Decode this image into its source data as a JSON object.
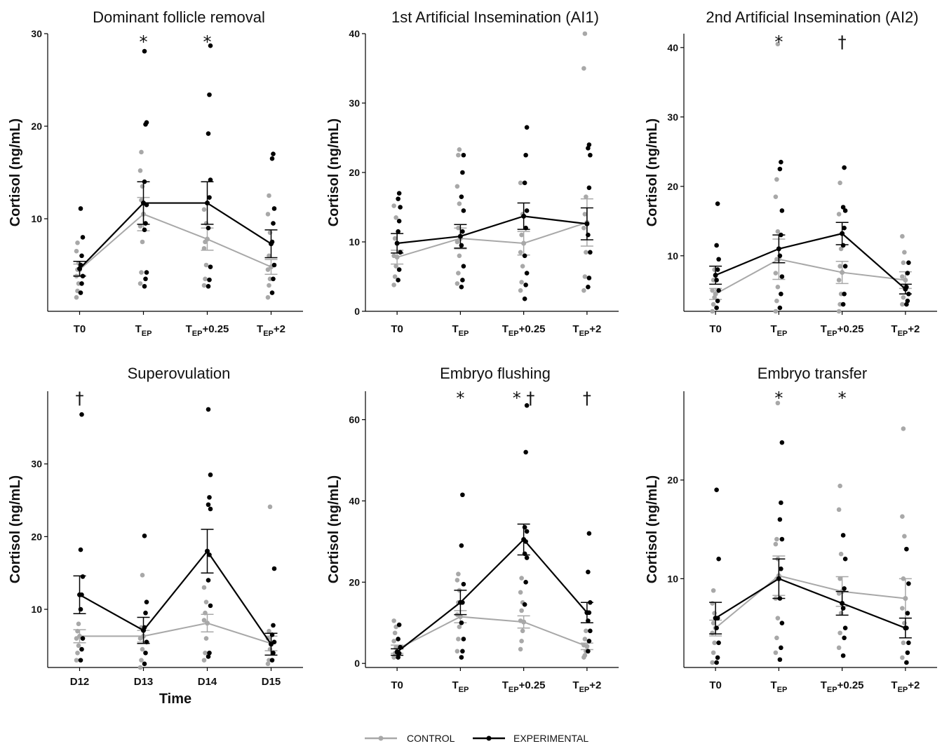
{
  "legend": {
    "control_label": "CONTROL",
    "experimental_label": "EXPERIMENTAL",
    "colors": {
      "control": "#a8a8a8",
      "experimental": "#000000"
    }
  },
  "chart_data": [
    {
      "type": "line",
      "title": "Dominant follicle removal",
      "ylabel": "Cortisol (ng/mL)",
      "xlabel": "",
      "ylim": [
        0,
        30
      ],
      "yticks": [
        10,
        20,
        30
      ],
      "categories": [
        {
          "main": "T0",
          "sub": "",
          "tail": ""
        },
        {
          "main": "T",
          "sub": "EP",
          "tail": ""
        },
        {
          "main": "T",
          "sub": "EP",
          "tail": "+0.25"
        },
        {
          "main": "T",
          "sub": "EP",
          "tail": "+2"
        }
      ],
      "series": [
        {
          "name": "CONTROL",
          "mean": [
            4.5,
            10.5,
            7.8,
            4.8
          ],
          "sem": [
            0.6,
            1.8,
            1.2,
            0.8
          ],
          "points": [
            [
              1.5,
              2.2,
              3.0,
              3.8,
              4.5,
              5.2,
              6.5,
              7.4
            ],
            [
              3.0,
              4.2,
              7.5,
              9.2,
              12.0,
              13.5,
              15.2,
              17.2
            ],
            [
              2.8,
              3.5,
              5.0,
              6.8,
              7.5,
              9.5,
              11.0
            ],
            [
              1.5,
              2.8,
              3.5,
              4.5,
              6.0,
              8.5,
              10.5,
              12.5
            ]
          ]
        },
        {
          "name": "EXPERIMENTAL",
          "mean": [
            4.6,
            11.7,
            11.7,
            7.3
          ],
          "sem": [
            0.8,
            2.3,
            2.3,
            1.5
          ],
          "points": [
            [
              2.0,
              3.0,
              3.8,
              5.0,
              6.0,
              8.0,
              11.1
            ],
            [
              2.7,
              3.5,
              4.2,
              8.8,
              9.5,
              11.5,
              14.0,
              20.2,
              20.4,
              28.1
            ],
            [
              2.7,
              3.4,
              4.8,
              9.0,
              12.3,
              14.2,
              19.2,
              23.4,
              28.7
            ],
            [
              2.0,
              3.5,
              5.0,
              7.5,
              9.5,
              11.1,
              16.5,
              17.0
            ]
          ]
        }
      ],
      "annotations": [
        {
          "category": 1,
          "text": "*"
        },
        {
          "category": 2,
          "text": "*"
        }
      ]
    },
    {
      "type": "line",
      "title": "1st Artificial Insemination (AI1)",
      "ylabel": "Cortisol (ng/mL)",
      "xlabel": "",
      "ylim": [
        0,
        40
      ],
      "yticks": [
        0,
        10,
        20,
        30,
        40
      ],
      "categories": [
        {
          "main": "T0",
          "sub": "",
          "tail": ""
        },
        {
          "main": "T",
          "sub": "EP",
          "tail": ""
        },
        {
          "main": "T",
          "sub": "EP",
          "tail": "+0.25"
        },
        {
          "main": "T",
          "sub": "EP",
          "tail": "+2"
        }
      ],
      "series": [
        {
          "name": "CONTROL",
          "mean": [
            7.8,
            10.5,
            9.8,
            12.8
          ],
          "sem": [
            1.0,
            1.5,
            1.7,
            3.4
          ],
          "points": [
            [
              3.8,
              5.0,
              6.5,
              8.0,
              10.5,
              13.5,
              15.2
            ],
            [
              4.0,
              5.5,
              8.0,
              10.0,
              12.0,
              15.5,
              18.0,
              22.5,
              23.3
            ],
            [
              3.0,
              4.2,
              6.5,
              8.5,
              11.0,
              14.0,
              18.5
            ],
            [
              3.0,
              5.0,
              8.5,
              12.0,
              14.0,
              16.5,
              35.0,
              40.0
            ]
          ]
        },
        {
          "name": "EXPERIMENTAL",
          "mean": [
            9.8,
            10.8,
            13.7,
            12.6
          ],
          "sem": [
            1.4,
            1.7,
            1.9,
            2.3
          ],
          "points": [
            [
              4.5,
              6.0,
              8.5,
              11.5,
              13.0,
              15.0,
              16.2,
              17.0
            ],
            [
              3.5,
              4.5,
              6.5,
              9.5,
              11.5,
              14.5,
              16.5,
              20.0,
              22.5
            ],
            [
              1.8,
              3.8,
              5.5,
              8.0,
              12.0,
              14.5,
              18.5,
              22.5,
              26.5
            ],
            [
              3.5,
              4.8,
              8.5,
              11.0,
              17.8,
              22.5,
              23.5,
              24.0
            ]
          ]
        }
      ],
      "annotations": []
    },
    {
      "type": "line",
      "title": "2nd Artificial Insemination (AI2)",
      "ylabel": "Cortisol (ng/mL)",
      "xlabel": "",
      "ylim": [
        2,
        42
      ],
      "yticks": [
        10,
        20,
        30,
        40
      ],
      "categories": [
        {
          "main": "T0",
          "sub": "",
          "tail": ""
        },
        {
          "main": "T",
          "sub": "EP",
          "tail": ""
        },
        {
          "main": "T",
          "sub": "EP",
          "tail": "+0.25"
        },
        {
          "main": "T",
          "sub": "EP",
          "tail": "+2"
        }
      ],
      "series": [
        {
          "name": "CONTROL",
          "mean": [
            4.5,
            9.5,
            7.6,
            6.5
          ],
          "sem": [
            0.8,
            2.9,
            1.6,
            1.2
          ],
          "points": [
            [
              2.0,
              3.0,
              4.0,
              5.0,
              6.5,
              8.0
            ],
            [
              2.0,
              3.5,
              5.5,
              7.5,
              9.5,
              13.5,
              18.5,
              21.0,
              40.5
            ],
            [
              2.0,
              3.0,
              4.5,
              6.5,
              8.5,
              11.0,
              16.0,
              20.5
            ],
            [
              3.0,
              4.0,
              5.5,
              7.0,
              9.0,
              10.5,
              12.8
            ]
          ]
        },
        {
          "name": "EXPERIMENTAL",
          "mean": [
            7.2,
            11.0,
            13.2,
            5.2
          ],
          "sem": [
            1.3,
            2.0,
            1.6,
            0.7
          ],
          "points": [
            [
              2.5,
              3.5,
              5.0,
              6.5,
              8.0,
              9.5,
              11.5,
              17.5
            ],
            [
              2.5,
              4.5,
              7.0,
              10.0,
              13.0,
              16.5,
              22.5,
              23.5
            ],
            [
              3.0,
              4.5,
              8.5,
              11.5,
              14.0,
              16.5,
              17.0,
              22.7
            ],
            [
              3.0,
              3.5,
              4.5,
              5.5,
              7.5,
              9.0
            ]
          ]
        }
      ],
      "annotations": [
        {
          "category": 1,
          "text": "*"
        },
        {
          "category": 2,
          "text": "†"
        }
      ]
    },
    {
      "type": "line",
      "title": "Superovulation",
      "ylabel": "Cortisol (ng/mL)",
      "xlabel": "Time",
      "ylim": [
        2,
        40
      ],
      "yticks": [
        10,
        20,
        30
      ],
      "categories": [
        {
          "main": "D12",
          "sub": "",
          "tail": ""
        },
        {
          "main": "D13",
          "sub": "",
          "tail": ""
        },
        {
          "main": "D14",
          "sub": "",
          "tail": ""
        },
        {
          "main": "D15",
          "sub": "",
          "tail": ""
        }
      ],
      "series": [
        {
          "name": "CONTROL",
          "mean": [
            6.3,
            6.3,
            8.1,
            5.3
          ],
          "sem": [
            0.9,
            0.8,
            1.2,
            1.0
          ],
          "points": [
            [
              3.0,
              4.0,
              5.0,
              6.0,
              7.0,
              8.0
            ],
            [
              2.0,
              3.0,
              4.5,
              6.0,
              7.5,
              14.7
            ],
            [
              3.0,
              4.0,
              6.0,
              8.5,
              9.5,
              11.0,
              13.0
            ],
            [
              2.5,
              3.0,
              4.5,
              6.0,
              7.0,
              24.1
            ]
          ]
        },
        {
          "name": "EXPERIMENTAL",
          "mean": [
            12.0,
            7.1,
            18.0,
            5.2
          ],
          "sem": [
            2.6,
            1.8,
            3.0,
            1.5
          ],
          "points": [
            [
              3.0,
              4.5,
              6.0,
              10.0,
              12.0,
              14.5,
              18.2,
              36.8
            ],
            [
              2.5,
              4.0,
              5.5,
              7.5,
              9.5,
              11.0,
              20.1
            ],
            [
              3.5,
              4.0,
              10.5,
              14.0,
              17.5,
              23.8,
              24.4,
              25.4,
              28.5,
              37.5
            ],
            [
              3.0,
              4.0,
              5.5,
              6.5,
              7.8,
              15.6
            ]
          ]
        }
      ],
      "annotations": [
        {
          "category": 0,
          "text": "†"
        }
      ]
    },
    {
      "type": "line",
      "title": "Embryo flushing",
      "ylabel": "Cortisol (ng/mL)",
      "xlabel": "",
      "ylim": [
        -1,
        67
      ],
      "yticks": [
        0,
        20,
        40,
        60
      ],
      "categories": [
        {
          "main": "T0",
          "sub": "",
          "tail": ""
        },
        {
          "main": "T",
          "sub": "EP",
          "tail": ""
        },
        {
          "main": "T",
          "sub": "EP",
          "tail": "+0.25"
        },
        {
          "main": "T",
          "sub": "EP",
          "tail": "+2"
        }
      ],
      "series": [
        {
          "name": "CONTROL",
          "mean": [
            3.5,
            11.5,
            10.2,
            4.2
          ],
          "sem": [
            1.0,
            1.5,
            1.5,
            0.8
          ],
          "points": [
            [
              1.5,
              2.5,
              4.0,
              5.5,
              7.5,
              9.0,
              10.5
            ],
            [
              3.0,
              6.0,
              9.0,
              12.0,
              15.0,
              18.0,
              20.5,
              22.0
            ],
            [
              3.5,
              5.5,
              8.0,
              10.5,
              13.0,
              15.0,
              17.5,
              21.0
            ],
            [
              1.5,
              2.0,
              3.0,
              4.5,
              6.0,
              8.0
            ]
          ]
        },
        {
          "name": "EXPERIMENTAL",
          "mean": [
            2.8,
            15.0,
            30.5,
            12.5
          ],
          "sem": [
            0.8,
            3.0,
            3.8,
            2.5
          ],
          "points": [
            [
              1.5,
              2.5,
              4.0,
              6.0,
              9.5
            ],
            [
              1.5,
              3.0,
              6.0,
              10.0,
              15.0,
              19.5,
              29.0,
              41.5
            ],
            [
              14.5,
              20.0,
              26.0,
              27.0,
              30.0,
              32.5,
              33.5,
              52.0,
              63.5
            ],
            [
              3.0,
              5.5,
              8.0,
              10.5,
              12.5,
              15.0,
              22.5,
              32.0
            ]
          ]
        }
      ],
      "annotations": [
        {
          "category": 1,
          "text": "*"
        },
        {
          "category": 2,
          "text": "* †"
        },
        {
          "category": 3,
          "text": "†"
        }
      ]
    },
    {
      "type": "line",
      "title": "Embryo transfer",
      "ylabel": "Cortisol (ng/mL)",
      "xlabel": "",
      "ylim": [
        1,
        29
      ],
      "yticks": [
        10,
        20
      ],
      "categories": [
        {
          "main": "T0",
          "sub": "",
          "tail": ""
        },
        {
          "main": "T",
          "sub": "EP",
          "tail": ""
        },
        {
          "main": "T",
          "sub": "EP",
          "tail": "+0.25"
        },
        {
          "main": "T",
          "sub": "EP",
          "tail": "+2"
        }
      ],
      "series": [
        {
          "name": "CONTROL",
          "mean": [
            5.0,
            10.3,
            8.7,
            8.0
          ],
          "sem": [
            0.8,
            2.0,
            1.5,
            2.0
          ],
          "points": [
            [
              1.5,
              2.5,
              3.5,
              4.5,
              5.5,
              6.5,
              7.5,
              8.8
            ],
            [
              2.5,
              4.0,
              6.0,
              8.0,
              10.0,
              12.0,
              13.5,
              14.0,
              27.8
            ],
            [
              3.0,
              4.5,
              6.5,
              8.5,
              10.0,
              12.5,
              17.0,
              19.4
            ],
            [
              2.0,
              3.5,
              5.5,
              7.0,
              10.0,
              14.3,
              16.3,
              25.2
            ]
          ]
        },
        {
          "name": "EXPERIMENTAL",
          "mean": [
            6.0,
            10.0,
            7.5,
            5.0
          ],
          "sem": [
            1.6,
            2.0,
            1.2,
            1.0
          ],
          "points": [
            [
              1.5,
              2.0,
              3.5,
              5.0,
              6.0,
              12.0,
              19.0
            ],
            [
              1.8,
              3.0,
              5.5,
              8.0,
              11.0,
              14.0,
              16.0,
              17.7,
              23.8
            ],
            [
              2.2,
              4.0,
              5.0,
              7.0,
              9.0,
              12.0,
              14.4
            ],
            [
              1.5,
              2.5,
              3.5,
              5.0,
              6.5,
              9.5,
              13.0
            ]
          ]
        }
      ],
      "annotations": [
        {
          "category": 1,
          "text": "*"
        },
        {
          "category": 2,
          "text": "*"
        }
      ]
    }
  ]
}
